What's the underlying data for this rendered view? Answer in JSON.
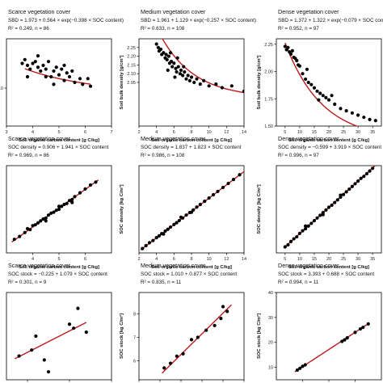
{
  "chart_data": [
    {
      "type": "scatter",
      "title": "Scarce vegetation cover",
      "equation": "SBD = 1.973 + 0.564 × exp(−0.398 × SOC content)",
      "stats": "R² = 0.249, n = 86",
      "xlabel": "Soil organic carbon content [g C/kg]",
      "ylabel": "",
      "xlim": [
        3,
        7
      ],
      "xticks": [
        "3",
        "4",
        "5",
        "6",
        "7"
      ],
      "ylim": [
        1.8,
        2.26
      ],
      "yticks": [
        "2.0"
      ],
      "ytick_values": [
        2.0
      ],
      "model": "exp",
      "coef": [
        1.973,
        0.564,
        -0.398
      ],
      "line_x": [
        3.7,
        6.2
      ],
      "points": [
        [
          3.6,
          2.13
        ],
        [
          3.7,
          2.15
        ],
        [
          3.8,
          2.12
        ],
        [
          3.9,
          2.1
        ],
        [
          4.0,
          2.13
        ],
        [
          4.1,
          2.14
        ],
        [
          4.2,
          2.11
        ],
        [
          4.3,
          2.09
        ],
        [
          4.4,
          2.12
        ],
        [
          4.5,
          2.1
        ],
        [
          4.6,
          2.14
        ],
        [
          4.7,
          2.06
        ],
        [
          4.8,
          2.09
        ],
        [
          4.9,
          2.11
        ],
        [
          5.0,
          2.07
        ],
        [
          5.1,
          2.1
        ],
        [
          5.2,
          2.04
        ],
        [
          5.3,
          2.08
        ],
        [
          5.4,
          2.06
        ],
        [
          5.5,
          2.09
        ],
        [
          5.6,
          2.03
        ],
        [
          5.8,
          2.05
        ],
        [
          5.9,
          2.02
        ],
        [
          6.1,
          2.05
        ],
        [
          6.2,
          2.01
        ],
        [
          4.2,
          2.17
        ],
        [
          4.5,
          2.06
        ],
        [
          4.8,
          2.02
        ],
        [
          5.2,
          2.12
        ],
        [
          3.8,
          2.06
        ]
      ]
    },
    {
      "type": "scatter",
      "title": "Medium vegetation cover",
      "equation": "SBD = 1.961 + 1.129 × exp(−0.257 × SOC content)",
      "stats": "R² = 0.633, n = 108",
      "xlabel": "Soil organic carbon content [g C/kg]",
      "ylabel": "Soil bulk density [g/cm³]",
      "xlim": [
        2,
        14
      ],
      "xticks": [
        "2",
        "4",
        "6",
        "8",
        "10",
        "12",
        "14"
      ],
      "ylim": [
        1.8,
        2.3
      ],
      "yticks": [
        "2.25",
        "2.20",
        "2.15",
        "2.10",
        "2.05"
      ],
      "ytick_values": [
        2.25,
        2.2,
        2.15,
        2.1,
        2.05
      ],
      "model": "exp",
      "coef": [
        1.961,
        1.129,
        -0.257
      ],
      "line_x": [
        4.0,
        14.0
      ],
      "points": [
        [
          4.0,
          2.27
        ],
        [
          4.2,
          2.25
        ],
        [
          4.3,
          2.23
        ],
        [
          4.5,
          2.24
        ],
        [
          4.6,
          2.21
        ],
        [
          4.8,
          2.22
        ],
        [
          5.0,
          2.19
        ],
        [
          5.1,
          2.21
        ],
        [
          5.2,
          2.18
        ],
        [
          5.4,
          2.2
        ],
        [
          5.5,
          2.16
        ],
        [
          5.7,
          2.17
        ],
        [
          5.8,
          2.14
        ],
        [
          6.0,
          2.16
        ],
        [
          6.2,
          2.13
        ],
        [
          6.3,
          2.11
        ],
        [
          6.5,
          2.14
        ],
        [
          6.7,
          2.1
        ],
        [
          6.8,
          2.12
        ],
        [
          7.0,
          2.09
        ],
        [
          7.2,
          2.11
        ],
        [
          7.4,
          2.07
        ],
        [
          7.6,
          2.09
        ],
        [
          7.8,
          2.06
        ],
        [
          8.0,
          2.08
        ],
        [
          8.3,
          2.05
        ],
        [
          8.6,
          2.07
        ],
        [
          9.0,
          2.04
        ],
        [
          9.4,
          2.06
        ],
        [
          10.0,
          2.03
        ],
        [
          10.8,
          2.04
        ],
        [
          11.5,
          2.02
        ],
        [
          12.6,
          2.03
        ],
        [
          14.0,
          2.0
        ],
        [
          5.6,
          2.22
        ],
        [
          6.4,
          2.19
        ],
        [
          7.1,
          2.14
        ],
        [
          5.3,
          2.12
        ],
        [
          6.1,
          2.08
        ]
      ]
    },
    {
      "type": "scatter",
      "title": "Dense vegetation cover",
      "equation": "SBD = 1.372 + 1.322 × exp(−0.079 × SOC content)",
      "stats": "R² = 0.952, n = 97",
      "xlabel": "Soil organic carbon content [g C/kg]",
      "ylabel": "Soil bulk density [g/cm³]",
      "xlim": [
        2,
        38
      ],
      "xticks": [
        "5",
        "10",
        "15",
        "20",
        "25",
        "30",
        "35"
      ],
      "ylim": [
        1.5,
        2.3
      ],
      "yticks": [
        "2.25",
        "2.00",
        "1.75",
        "1.50"
      ],
      "ytick_values": [
        2.25,
        2.0,
        1.75,
        1.5
      ],
      "model": "exp",
      "coef": [
        1.372,
        1.322,
        -0.079
      ],
      "line_x": [
        5.0,
        37.0
      ],
      "points": [
        [
          5.0,
          2.23
        ],
        [
          5.5,
          2.2
        ],
        [
          6.0,
          2.22
        ],
        [
          6.5,
          2.18
        ],
        [
          7.0,
          2.16
        ],
        [
          7.5,
          2.19
        ],
        [
          8.0,
          2.13
        ],
        [
          8.5,
          2.12
        ],
        [
          9.0,
          2.1
        ],
        [
          9.5,
          2.06
        ],
        [
          10.0,
          2.05
        ],
        [
          11.0,
          1.98
        ],
        [
          12.0,
          1.93
        ],
        [
          13.0,
          1.9
        ],
        [
          14.0,
          1.88
        ],
        [
          15.0,
          1.85
        ],
        [
          16.0,
          1.82
        ],
        [
          17.0,
          1.8
        ],
        [
          18.0,
          1.78
        ],
        [
          19.0,
          1.76
        ],
        [
          20.0,
          1.74
        ],
        [
          22.0,
          1.7
        ],
        [
          24.0,
          1.66
        ],
        [
          26.0,
          1.64
        ],
        [
          28.0,
          1.62
        ],
        [
          30.0,
          1.6
        ],
        [
          32.0,
          1.58
        ],
        [
          34.0,
          1.56
        ],
        [
          36.0,
          1.55
        ],
        [
          12.5,
          2.02
        ],
        [
          16.5,
          1.74
        ],
        [
          21.0,
          1.78
        ]
      ]
    },
    {
      "type": "scatter",
      "title": "Scarce vegetation cover",
      "equation": "SOC density = 0.906 + 1.941 × SOC content",
      "stats": "R² = 0.969, n = 86",
      "xlabel": "Soil organic carbon content [g C/kg]",
      "ylabel": "",
      "xlim": [
        3,
        7
      ],
      "xticks": [
        "4",
        "5",
        "6"
      ],
      "ylim": [
        6,
        15
      ],
      "yticks": [],
      "ytick_values": [],
      "model": "lin",
      "coef": [
        0.906,
        1.941
      ],
      "line_x": [
        3.2,
        6.5
      ],
      "points": [
        [
          3.3,
          7.4
        ],
        [
          3.5,
          7.7
        ],
        [
          3.7,
          8.1
        ],
        [
          3.8,
          8.5
        ],
        [
          3.9,
          8.4
        ],
        [
          4.0,
          8.8
        ],
        [
          4.1,
          8.9
        ],
        [
          4.2,
          9.1
        ],
        [
          4.3,
          9.3
        ],
        [
          4.4,
          9.5
        ],
        [
          4.5,
          9.6
        ],
        [
          4.6,
          9.9
        ],
        [
          4.7,
          10.1
        ],
        [
          4.8,
          10.2
        ],
        [
          4.9,
          10.4
        ],
        [
          5.0,
          10.5
        ],
        [
          5.1,
          10.8
        ],
        [
          5.2,
          11.0
        ],
        [
          5.3,
          11.1
        ],
        [
          5.4,
          11.4
        ],
        [
          5.5,
          11.5
        ],
        [
          5.6,
          11.8
        ],
        [
          5.8,
          12.2
        ],
        [
          6.0,
          12.6
        ],
        [
          6.2,
          13.0
        ],
        [
          6.4,
          13.3
        ],
        [
          4.5,
          9.3
        ],
        [
          5.0,
          10.8
        ],
        [
          5.5,
          11.2
        ]
      ]
    },
    {
      "type": "scatter",
      "title": "Medium vegetation cover",
      "equation": "SOC density = 1.837 + 1.823 × SOC content",
      "stats": "R² = 0.986, n = 108",
      "xlabel": "Soil organic carbon content [g C/kg]",
      "ylabel": "SOC density [kg C/m³]",
      "xlim": [
        2,
        14
      ],
      "xticks": [
        "2",
        "4",
        "6",
        "8",
        "10",
        "12",
        "14"
      ],
      "ylim": [
        5,
        29
      ],
      "yticks": [],
      "ytick_values": [],
      "model": "lin",
      "coef": [
        1.837,
        1.823
      ],
      "line_x": [
        2.2,
        14.0
      ],
      "points": [
        [
          2.4,
          6.2
        ],
        [
          2.8,
          7.0
        ],
        [
          3.2,
          7.8
        ],
        [
          3.6,
          8.4
        ],
        [
          4.0,
          9.2
        ],
        [
          4.3,
          9.7
        ],
        [
          4.6,
          10.3
        ],
        [
          5.0,
          11.0
        ],
        [
          5.3,
          11.5
        ],
        [
          5.6,
          12.1
        ],
        [
          6.0,
          12.8
        ],
        [
          6.3,
          13.3
        ],
        [
          6.6,
          13.9
        ],
        [
          7.0,
          14.6
        ],
        [
          7.4,
          15.4
        ],
        [
          7.8,
          16.1
        ],
        [
          8.2,
          16.8
        ],
        [
          8.6,
          17.6
        ],
        [
          9.0,
          18.3
        ],
        [
          9.5,
          19.2
        ],
        [
          10.0,
          20.1
        ],
        [
          10.5,
          21.0
        ],
        [
          11.0,
          21.9
        ],
        [
          11.6,
          23.0
        ],
        [
          12.2,
          24.1
        ],
        [
          12.8,
          25.2
        ],
        [
          13.5,
          26.5
        ],
        [
          4.8,
          10.2
        ],
        [
          6.8,
          14.8
        ],
        [
          8.0,
          16.2
        ]
      ]
    },
    {
      "type": "scatter",
      "title": "Dense vegetation cover",
      "equation": "SOC density = −0.599 + 3.919 × SOC content",
      "stats": "R² = 0.996, n = 97",
      "xlabel": "Soil organic carbon content [g C/kg]",
      "ylabel": "SOC density [kg C/m³]",
      "xlim": [
        2,
        38
      ],
      "xticks": [
        "5",
        "10",
        "15",
        "20",
        "25",
        "30",
        "35"
      ],
      "ylim": [
        10,
        140
      ],
      "yticks": [],
      "ytick_values": [],
      "model": "lin",
      "coef": [
        -0.599,
        3.919
      ],
      "line_x": [
        4.5,
        37.0
      ],
      "points": [
        [
          5,
          19
        ],
        [
          6,
          22
        ],
        [
          7,
          27
        ],
        [
          8,
          31
        ],
        [
          9,
          34
        ],
        [
          10,
          39
        ],
        [
          11,
          43
        ],
        [
          12,
          46
        ],
        [
          13,
          50
        ],
        [
          14,
          54
        ],
        [
          15,
          58
        ],
        [
          16,
          62
        ],
        [
          17,
          66
        ],
        [
          18,
          70
        ],
        [
          19,
          74
        ],
        [
          20,
          78
        ],
        [
          21,
          81
        ],
        [
          22,
          85
        ],
        [
          23,
          89
        ],
        [
          24,
          93
        ],
        [
          25,
          97
        ],
        [
          26,
          101
        ],
        [
          27,
          105
        ],
        [
          28,
          109
        ],
        [
          29,
          113
        ],
        [
          30,
          117
        ],
        [
          31,
          121
        ],
        [
          32,
          124
        ],
        [
          33,
          128
        ],
        [
          34,
          132
        ],
        [
          35,
          136
        ],
        [
          12,
          50
        ],
        [
          18,
          67
        ],
        [
          24,
          96
        ]
      ]
    },
    {
      "type": "scatter",
      "title": "Scarce vegetation cover",
      "equation": "SOC stock = −0.225 + 1.079 × SOC content",
      "stats": "R² = 0.301, n = 9",
      "xlabel": "Soil organic carbon content [g C/kg]",
      "ylabel": "",
      "xlim": [
        3.75,
        5.0
      ],
      "xticks": [
        "4.0",
        "4.5",
        "5.0"
      ],
      "ylim": [
        3.4,
        5.6
      ],
      "yticks": [],
      "ytick_values": [],
      "model": "lin",
      "coef": [
        -0.225,
        1.079
      ],
      "line_x": [
        3.85,
        4.7
      ],
      "points": [
        [
          3.9,
          4.0
        ],
        [
          4.05,
          4.15
        ],
        [
          4.1,
          4.5
        ],
        [
          4.2,
          3.9
        ],
        [
          4.25,
          3.6
        ],
        [
          4.5,
          4.8
        ],
        [
          4.55,
          4.7
        ],
        [
          4.6,
          5.2
        ],
        [
          4.7,
          4.6
        ]
      ]
    },
    {
      "type": "scatter",
      "title": "Medium vegetation cover",
      "equation": "SOC stock = 1.010 + 0.877 × SOC content",
      "stats": "R² = 0.835, n = 11",
      "xlabel": "Soil organic carbon content [g C/kg]",
      "ylabel": "SOC stock [kg C/m²]",
      "xlim": [
        4,
        9
      ],
      "xticks": [
        "4",
        "5",
        "6",
        "7",
        "8",
        "9"
      ],
      "ylim": [
        5.2,
        8.9
      ],
      "yticks": [
        "8",
        "7",
        "6"
      ],
      "ytick_values": [
        8,
        7,
        6
      ],
      "model": "lin",
      "coef": [
        1.01,
        0.877
      ],
      "line_x": [
        5.1,
        8.4
      ],
      "points": [
        [
          5.2,
          5.7
        ],
        [
          5.5,
          5.9
        ],
        [
          5.8,
          6.2
        ],
        [
          6.1,
          6.3
        ],
        [
          6.5,
          6.9
        ],
        [
          6.8,
          7.0
        ],
        [
          7.2,
          7.3
        ],
        [
          7.6,
          7.5
        ],
        [
          7.9,
          7.8
        ],
        [
          8.0,
          8.3
        ],
        [
          8.2,
          8.1
        ]
      ]
    },
    {
      "type": "scatter",
      "title": "Dense vegetation cover",
      "equation": "SOC stock = 3.393 + 0.688 × SOC content",
      "stats": "R² = 0.994, n = 11",
      "xlabel": "Soil organic carbon content [g C/kg]",
      "ylabel": "SOC stock [kg C/m²]",
      "xlim": [
        0,
        40
      ],
      "xticks": [
        "10",
        "20",
        "30"
      ],
      "ylim": [
        5,
        40
      ],
      "yticks": [
        "40",
        "30",
        "20",
        "10"
      ],
      "ytick_values": [
        40,
        30,
        20,
        10
      ],
      "model": "lin",
      "coef": [
        3.393,
        0.688
      ],
      "line_x": [
        7.0,
        35.0
      ],
      "points": [
        [
          8,
          8.9
        ],
        [
          9,
          9.6
        ],
        [
          10,
          10.4
        ],
        [
          11,
          11.0
        ],
        [
          25,
          20.4
        ],
        [
          26,
          21.0
        ],
        [
          27,
          21.8
        ],
        [
          30,
          24.0
        ],
        [
          32,
          25.4
        ],
        [
          33,
          26.0
        ],
        [
          35,
          27.4
        ]
      ]
    }
  ]
}
